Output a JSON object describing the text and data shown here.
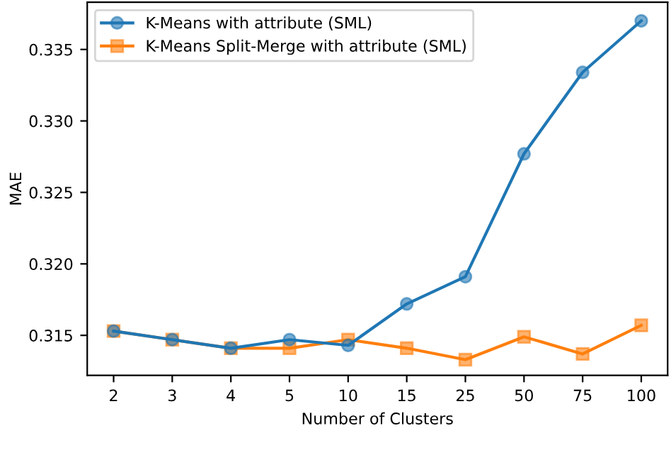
{
  "chart_data": {
    "type": "line",
    "xlabel": "Number of Clusters",
    "ylabel": "MAE",
    "categories": [
      "2",
      "3",
      "4",
      "5",
      "10",
      "15",
      "25",
      "50",
      "75",
      "100"
    ],
    "series": [
      {
        "name": "K-Means with attribute (SML)",
        "color": "#1f77b4",
        "marker": "circle",
        "values": [
          0.3153,
          0.3147,
          0.3141,
          0.3147,
          0.3143,
          0.3172,
          0.3191,
          0.3277,
          0.3334,
          0.337
        ]
      },
      {
        "name": "K-Means Split-Merge with attribute (SML)",
        "color": "#ff7f0e",
        "marker": "square",
        "values": [
          0.3153,
          0.3147,
          0.3141,
          0.3141,
          0.3147,
          0.3141,
          0.3133,
          0.3149,
          0.3137,
          0.3157
        ]
      }
    ],
    "ylim": [
      0.3122,
      0.3383
    ],
    "yticks": [
      {
        "value": 0.315,
        "label": "0.315"
      },
      {
        "value": 0.32,
        "label": "0.320"
      },
      {
        "value": 0.325,
        "label": "0.325"
      },
      {
        "value": 0.33,
        "label": "0.330"
      },
      {
        "value": 0.335,
        "label": "0.335"
      }
    ],
    "legend": "top left",
    "grid": false
  }
}
